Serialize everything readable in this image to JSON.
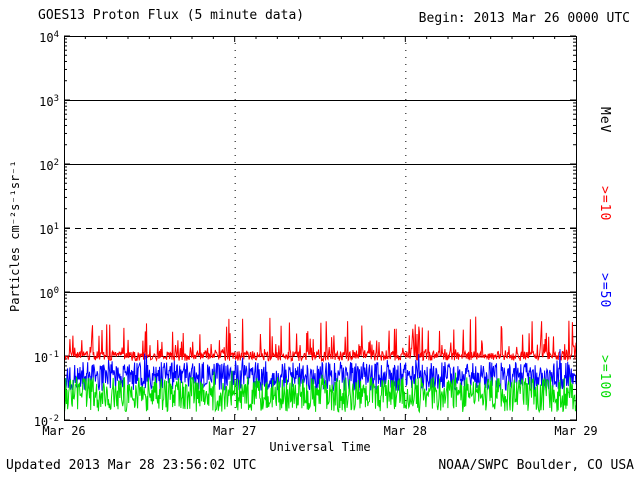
{
  "header": {
    "title": "GOES13 Proton Flux (5 minute data)",
    "begin_label": "Begin: 2013 Mar 26 0000 UTC"
  },
  "footer": {
    "updated": "Updated 2013 Mar 28 23:56:02 UTC",
    "source": "NOAA/SWPC Boulder, CO USA"
  },
  "chart_data": {
    "type": "line",
    "title": "GOES13 Proton Flux (5 minute data)",
    "xlabel": "Universal Time",
    "ylabel": "Particles cm⁻²s⁻¹sr⁻¹",
    "y_scale": "log",
    "ylim": [
      0.01,
      10000
    ],
    "y_tick_base": "10",
    "y_tick_exponents": [
      4,
      3,
      2,
      1,
      0,
      -1,
      -2
    ],
    "x_ticks": [
      "Mar 26",
      "Mar 27",
      "Mar 28",
      "Mar 29"
    ],
    "x_span_days": 3,
    "points_per_day": 288,
    "grid": {
      "solid_decades": [
        3,
        2,
        0,
        -1
      ],
      "dashed_decades": [
        1
      ],
      "vertical_dotted_day_indexes": [
        1,
        2
      ]
    },
    "right_axis_labels": [
      {
        "label": "MeV",
        "color": "#000000"
      },
      {
        "label": ">=10",
        "color": "#ff0000"
      },
      {
        "label": ">=50",
        "color": "#0000ff"
      },
      {
        "label": ">=100",
        "color": "#00dd00"
      }
    ],
    "series": [
      {
        "name": ">=10 MeV",
        "color": "#ff0000",
        "approx_median_flux": 0.1,
        "approx_flux_range": [
          0.08,
          0.4
        ],
        "base_log10": -1.0,
        "jitter_log10": 0.15,
        "spike_prob": 0.25,
        "spike_max_log10": 0.55,
        "clamp_min_log10": -1.1,
        "seed": 11
      },
      {
        "name": ">=50 MeV",
        "color": "#0000ff",
        "approx_median_flux": 0.048,
        "approx_flux_range": [
          0.028,
          0.13
        ],
        "base_log10": -1.32,
        "jitter_log10": 0.45,
        "spike_prob": 0.08,
        "spike_max_log10": 0.25,
        "clamp_min_log10": -1.6,
        "seed": 22
      },
      {
        "name": ">=100 MeV",
        "color": "#00dd00",
        "approx_median_flux": 0.025,
        "approx_flux_range": [
          0.01,
          0.055
        ],
        "base_log10": -1.6,
        "jitter_log10": 0.55,
        "spike_prob": 0.05,
        "spike_max_log10": 0.15,
        "clamp_min_log10": -1.98,
        "seed": 33
      }
    ]
  }
}
